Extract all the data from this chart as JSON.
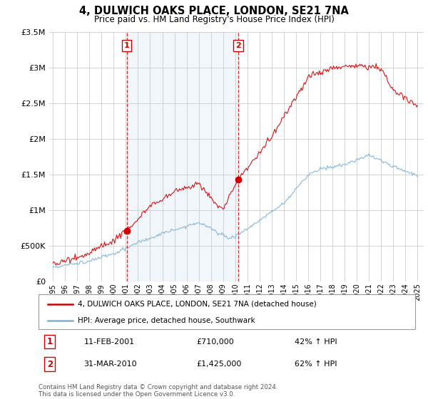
{
  "title": "4, DULWICH OAKS PLACE, LONDON, SE21 7NA",
  "subtitle": "Price paid vs. HM Land Registry's House Price Index (HPI)",
  "legend_line1": "4, DULWICH OAKS PLACE, LONDON, SE21 7NA (detached house)",
  "legend_line2": "HPI: Average price, detached house, Southwark",
  "sale1_date": "11-FEB-2001",
  "sale1_price": "£710,000",
  "sale1_hpi": "42% ↑ HPI",
  "sale1_year": 2001.08,
  "sale1_value": 710000,
  "sale2_date": "31-MAR-2010",
  "sale2_price": "£1,425,000",
  "sale2_hpi": "62% ↑ HPI",
  "sale2_year": 2010.25,
  "sale2_value": 1425000,
  "footer": "Contains HM Land Registry data © Crown copyright and database right 2024.\nThis data is licensed under the Open Government Licence v3.0.",
  "red_color": "#cc0000",
  "blue_color": "#7ab0d4",
  "shade_color": "#ddeeff",
  "background_color": "#ffffff",
  "grid_color": "#cccccc",
  "ylim": [
    0,
    3500000
  ],
  "yticks": [
    0,
    500000,
    1000000,
    1500000,
    2000000,
    2500000,
    3000000,
    3500000
  ],
  "ytick_labels": [
    "£0",
    "£500K",
    "£1M",
    "£1.5M",
    "£2M",
    "£2.5M",
    "£3M",
    "£3.5M"
  ],
  "xlim_start": 1994.7,
  "xlim_end": 2025.5
}
